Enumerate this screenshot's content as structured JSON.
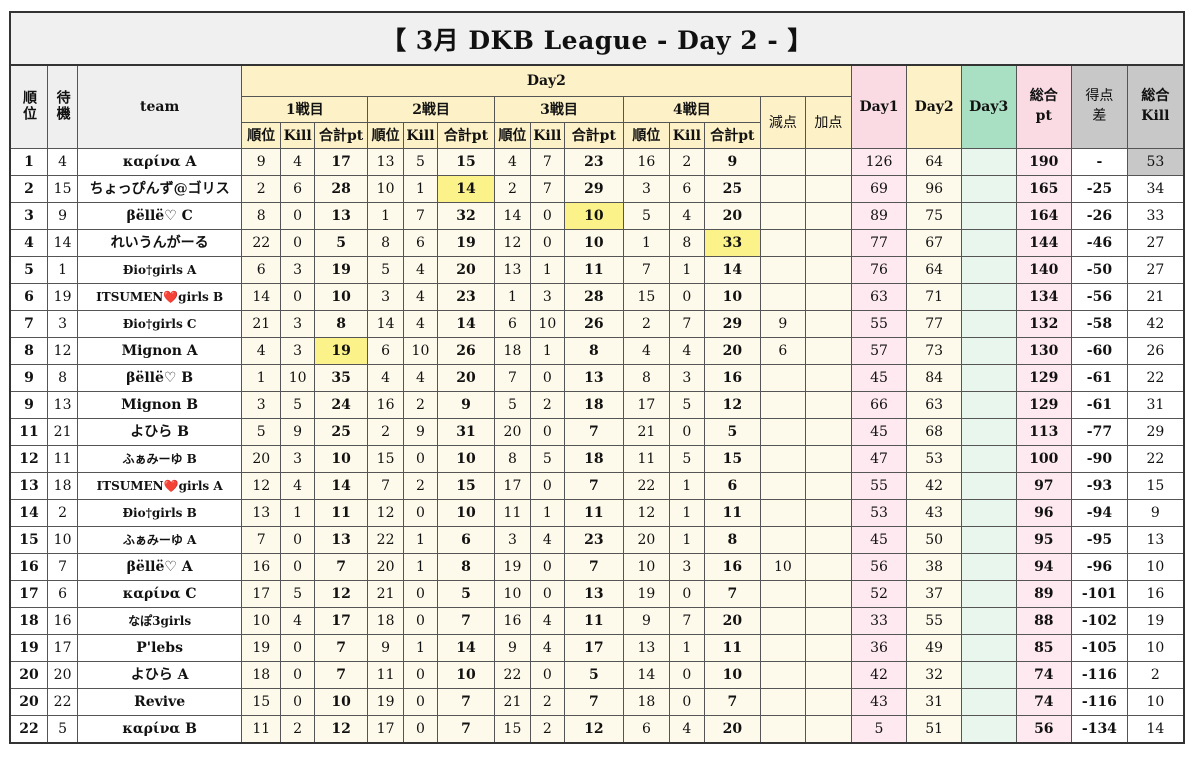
{
  "title": "【 3月 DKB League - Day 2 - 】",
  "headers": {
    "rank": "順位",
    "wait": "待機",
    "team": "team",
    "day2": "Day2",
    "match1": "1戦目",
    "match2": "2戦目",
    "match3": "3戦目",
    "match4": "4戦目",
    "sub_rank": "順位",
    "sub_kill": "Kill",
    "sub_pt": "合計pt",
    "deduction": "減点",
    "bonus": "加点",
    "day1": "Day1",
    "day2col": "Day2",
    "day3": "Day3",
    "total_pt": "総合pt",
    "diff": "得点差",
    "total_kill": "総合Kill"
  },
  "colors": {
    "title_bg": "#f0f0f0",
    "day2_header": "#fdf1c7",
    "day1_pink": "#fadbe4",
    "day3_green": "#a9dfc3",
    "highlight_yellow": "#fbf28a",
    "diff_gray": "#c8c8c8"
  },
  "rows": [
    {
      "rank": "1",
      "wait": "4",
      "team": "καρίνα A",
      "m1": [
        "9",
        "4",
        "17"
      ],
      "m2": [
        "13",
        "5",
        "15"
      ],
      "m3": [
        "4",
        "7",
        "23"
      ],
      "m4": [
        "16",
        "2",
        "9"
      ],
      "ded": "",
      "bon": "",
      "day1": "126",
      "day2": "64",
      "day3": "",
      "total": "190",
      "diff": "-",
      "kill": "53",
      "hl": []
    },
    {
      "rank": "2",
      "wait": "15",
      "team": "ちょっぴんず@ゴリス",
      "m1": [
        "2",
        "6",
        "28"
      ],
      "m2": [
        "10",
        "1",
        "14"
      ],
      "m3": [
        "2",
        "7",
        "29"
      ],
      "m4": [
        "3",
        "6",
        "25"
      ],
      "ded": "",
      "bon": "",
      "day1": "69",
      "day2": "96",
      "day3": "",
      "total": "165",
      "diff": "-25",
      "kill": "34",
      "hl": [
        "m2",
        "day2"
      ]
    },
    {
      "rank": "3",
      "wait": "9",
      "team": "βëllë♡ C",
      "m1": [
        "8",
        "0",
        "13"
      ],
      "m2": [
        "1",
        "7",
        "32"
      ],
      "m3": [
        "14",
        "0",
        "10"
      ],
      "m4": [
        "5",
        "4",
        "20"
      ],
      "ded": "",
      "bon": "",
      "day1": "89",
      "day2": "75",
      "day3": "",
      "total": "164",
      "diff": "-26",
      "kill": "33",
      "hl": [
        "m3"
      ]
    },
    {
      "rank": "4",
      "wait": "14",
      "team": "れいうんがーる",
      "m1": [
        "22",
        "0",
        "5"
      ],
      "m2": [
        "8",
        "6",
        "19"
      ],
      "m3": [
        "12",
        "0",
        "10"
      ],
      "m4": [
        "1",
        "8",
        "33"
      ],
      "ded": "",
      "bon": "",
      "day1": "77",
      "day2": "67",
      "day3": "",
      "total": "144",
      "diff": "-46",
      "kill": "27",
      "hl": [
        "m4"
      ]
    },
    {
      "rank": "5",
      "wait": "1",
      "team": "Ðio†girls A",
      "m1": [
        "6",
        "3",
        "19"
      ],
      "m2": [
        "5",
        "4",
        "20"
      ],
      "m3": [
        "13",
        "1",
        "11"
      ],
      "m4": [
        "7",
        "1",
        "14"
      ],
      "ded": "",
      "bon": "",
      "day1": "76",
      "day2": "64",
      "day3": "",
      "total": "140",
      "diff": "-50",
      "kill": "27",
      "hl": []
    },
    {
      "rank": "6",
      "wait": "19",
      "team": "ITSUMEN❤️girls B",
      "m1": [
        "14",
        "0",
        "10"
      ],
      "m2": [
        "3",
        "4",
        "23"
      ],
      "m3": [
        "1",
        "3",
        "28"
      ],
      "m4": [
        "15",
        "0",
        "10"
      ],
      "ded": "",
      "bon": "",
      "day1": "63",
      "day2": "71",
      "day3": "",
      "total": "134",
      "diff": "-56",
      "kill": "21",
      "hl": []
    },
    {
      "rank": "7",
      "wait": "3",
      "team": "Ðio†girls C",
      "m1": [
        "21",
        "3",
        "8"
      ],
      "m2": [
        "14",
        "4",
        "14"
      ],
      "m3": [
        "6",
        "10",
        "26"
      ],
      "m4": [
        "2",
        "7",
        "29"
      ],
      "ded": "9",
      "bon": "",
      "day1": "55",
      "day2": "77",
      "day3": "",
      "total": "132",
      "diff": "-58",
      "kill": "42",
      "hl": []
    },
    {
      "rank": "8",
      "wait": "12",
      "team": "Mignon A",
      "m1": [
        "4",
        "3",
        "19"
      ],
      "m2": [
        "6",
        "10",
        "26"
      ],
      "m3": [
        "18",
        "1",
        "8"
      ],
      "m4": [
        "4",
        "4",
        "20"
      ],
      "ded": "6",
      "bon": "",
      "day1": "57",
      "day2": "73",
      "day3": "",
      "total": "130",
      "diff": "-60",
      "kill": "26",
      "hl": [
        "m1"
      ]
    },
    {
      "rank": "9",
      "wait": "8",
      "team": "βëllë♡ B",
      "m1": [
        "1",
        "10",
        "35"
      ],
      "m2": [
        "4",
        "4",
        "20"
      ],
      "m3": [
        "7",
        "0",
        "13"
      ],
      "m4": [
        "8",
        "3",
        "16"
      ],
      "ded": "",
      "bon": "",
      "day1": "45",
      "day2": "84",
      "day3": "",
      "total": "129",
      "diff": "-61",
      "kill": "22",
      "hl": []
    },
    {
      "rank": "9",
      "wait": "13",
      "team": "Mignon B",
      "m1": [
        "3",
        "5",
        "24"
      ],
      "m2": [
        "16",
        "2",
        "9"
      ],
      "m3": [
        "5",
        "2",
        "18"
      ],
      "m4": [
        "17",
        "5",
        "12"
      ],
      "ded": "",
      "bon": "",
      "day1": "66",
      "day2": "63",
      "day3": "",
      "total": "129",
      "diff": "-61",
      "kill": "31",
      "hl": []
    },
    {
      "rank": "11",
      "wait": "21",
      "team": "よひら B",
      "m1": [
        "5",
        "9",
        "25"
      ],
      "m2": [
        "2",
        "9",
        "31"
      ],
      "m3": [
        "20",
        "0",
        "7"
      ],
      "m4": [
        "21",
        "0",
        "5"
      ],
      "ded": "",
      "bon": "",
      "day1": "45",
      "day2": "68",
      "day3": "",
      "total": "113",
      "diff": "-77",
      "kill": "29",
      "hl": []
    },
    {
      "rank": "12",
      "wait": "11",
      "team": "ふぁみーゆ B",
      "m1": [
        "20",
        "3",
        "10"
      ],
      "m2": [
        "15",
        "0",
        "10"
      ],
      "m3": [
        "8",
        "5",
        "18"
      ],
      "m4": [
        "11",
        "5",
        "15"
      ],
      "ded": "",
      "bon": "",
      "day1": "47",
      "day2": "53",
      "day3": "",
      "total": "100",
      "diff": "-90",
      "kill": "22",
      "hl": []
    },
    {
      "rank": "13",
      "wait": "18",
      "team": "ITSUMEN❤️girls A",
      "m1": [
        "12",
        "4",
        "14"
      ],
      "m2": [
        "7",
        "2",
        "15"
      ],
      "m3": [
        "17",
        "0",
        "7"
      ],
      "m4": [
        "22",
        "1",
        "6"
      ],
      "ded": "",
      "bon": "",
      "day1": "55",
      "day2": "42",
      "day3": "",
      "total": "97",
      "diff": "-93",
      "kill": "15",
      "hl": []
    },
    {
      "rank": "14",
      "wait": "2",
      "team": "Ðio†girls B",
      "m1": [
        "13",
        "1",
        "11"
      ],
      "m2": [
        "12",
        "0",
        "10"
      ],
      "m3": [
        "11",
        "1",
        "11"
      ],
      "m4": [
        "12",
        "1",
        "11"
      ],
      "ded": "",
      "bon": "",
      "day1": "53",
      "day2": "43",
      "day3": "",
      "total": "96",
      "diff": "-94",
      "kill": "9",
      "hl": []
    },
    {
      "rank": "15",
      "wait": "10",
      "team": "ふぁみーゆ A",
      "m1": [
        "7",
        "0",
        "13"
      ],
      "m2": [
        "22",
        "1",
        "6"
      ],
      "m3": [
        "3",
        "4",
        "23"
      ],
      "m4": [
        "20",
        "1",
        "8"
      ],
      "ded": "",
      "bon": "",
      "day1": "45",
      "day2": "50",
      "day3": "",
      "total": "95",
      "diff": "-95",
      "kill": "13",
      "hl": []
    },
    {
      "rank": "16",
      "wait": "7",
      "team": "βëllë♡ A",
      "m1": [
        "16",
        "0",
        "7"
      ],
      "m2": [
        "20",
        "1",
        "8"
      ],
      "m3": [
        "19",
        "0",
        "7"
      ],
      "m4": [
        "10",
        "3",
        "16"
      ],
      "ded": "10",
      "bon": "",
      "day1": "56",
      "day2": "38",
      "day3": "",
      "total": "94",
      "diff": "-96",
      "kill": "10",
      "hl": []
    },
    {
      "rank": "17",
      "wait": "6",
      "team": "καρίνα C",
      "m1": [
        "17",
        "5",
        "12"
      ],
      "m2": [
        "21",
        "0",
        "5"
      ],
      "m3": [
        "10",
        "0",
        "13"
      ],
      "m4": [
        "19",
        "0",
        "7"
      ],
      "ded": "",
      "bon": "",
      "day1": "52",
      "day2": "37",
      "day3": "",
      "total": "89",
      "diff": "-101",
      "kill": "16",
      "hl": []
    },
    {
      "rank": "18",
      "wait": "16",
      "team": "なぽ3girls",
      "m1": [
        "10",
        "4",
        "17"
      ],
      "m2": [
        "18",
        "0",
        "7"
      ],
      "m3": [
        "16",
        "4",
        "11"
      ],
      "m4": [
        "9",
        "7",
        "20"
      ],
      "ded": "",
      "bon": "",
      "day1": "33",
      "day2": "55",
      "day3": "",
      "total": "88",
      "diff": "-102",
      "kill": "19",
      "hl": []
    },
    {
      "rank": "19",
      "wait": "17",
      "team": "P'lebs",
      "m1": [
        "19",
        "0",
        "7"
      ],
      "m2": [
        "9",
        "1",
        "14"
      ],
      "m3": [
        "9",
        "4",
        "17"
      ],
      "m4": [
        "13",
        "1",
        "11"
      ],
      "ded": "",
      "bon": "",
      "day1": "36",
      "day2": "49",
      "day3": "",
      "total": "85",
      "diff": "-105",
      "kill": "10",
      "hl": []
    },
    {
      "rank": "20",
      "wait": "20",
      "team": "よひら A",
      "m1": [
        "18",
        "0",
        "7"
      ],
      "m2": [
        "11",
        "0",
        "10"
      ],
      "m3": [
        "22",
        "0",
        "5"
      ],
      "m4": [
        "14",
        "0",
        "10"
      ],
      "ded": "",
      "bon": "",
      "day1": "42",
      "day2": "32",
      "day3": "",
      "total": "74",
      "diff": "-116",
      "kill": "2",
      "hl": []
    },
    {
      "rank": "20",
      "wait": "22",
      "team": "Revive",
      "m1": [
        "15",
        "0",
        "10"
      ],
      "m2": [
        "19",
        "0",
        "7"
      ],
      "m3": [
        "21",
        "2",
        "7"
      ],
      "m4": [
        "18",
        "0",
        "7"
      ],
      "ded": "",
      "bon": "",
      "day1": "43",
      "day2": "31",
      "day3": "",
      "total": "74",
      "diff": "-116",
      "kill": "10",
      "hl": []
    },
    {
      "rank": "22",
      "wait": "5",
      "team": "καρίνα B",
      "m1": [
        "11",
        "2",
        "12"
      ],
      "m2": [
        "17",
        "0",
        "7"
      ],
      "m3": [
        "15",
        "2",
        "12"
      ],
      "m4": [
        "6",
        "4",
        "20"
      ],
      "ded": "",
      "bon": "",
      "day1": "5",
      "day2": "51",
      "day3": "",
      "total": "56",
      "diff": "-134",
      "kill": "14",
      "hl": []
    }
  ]
}
